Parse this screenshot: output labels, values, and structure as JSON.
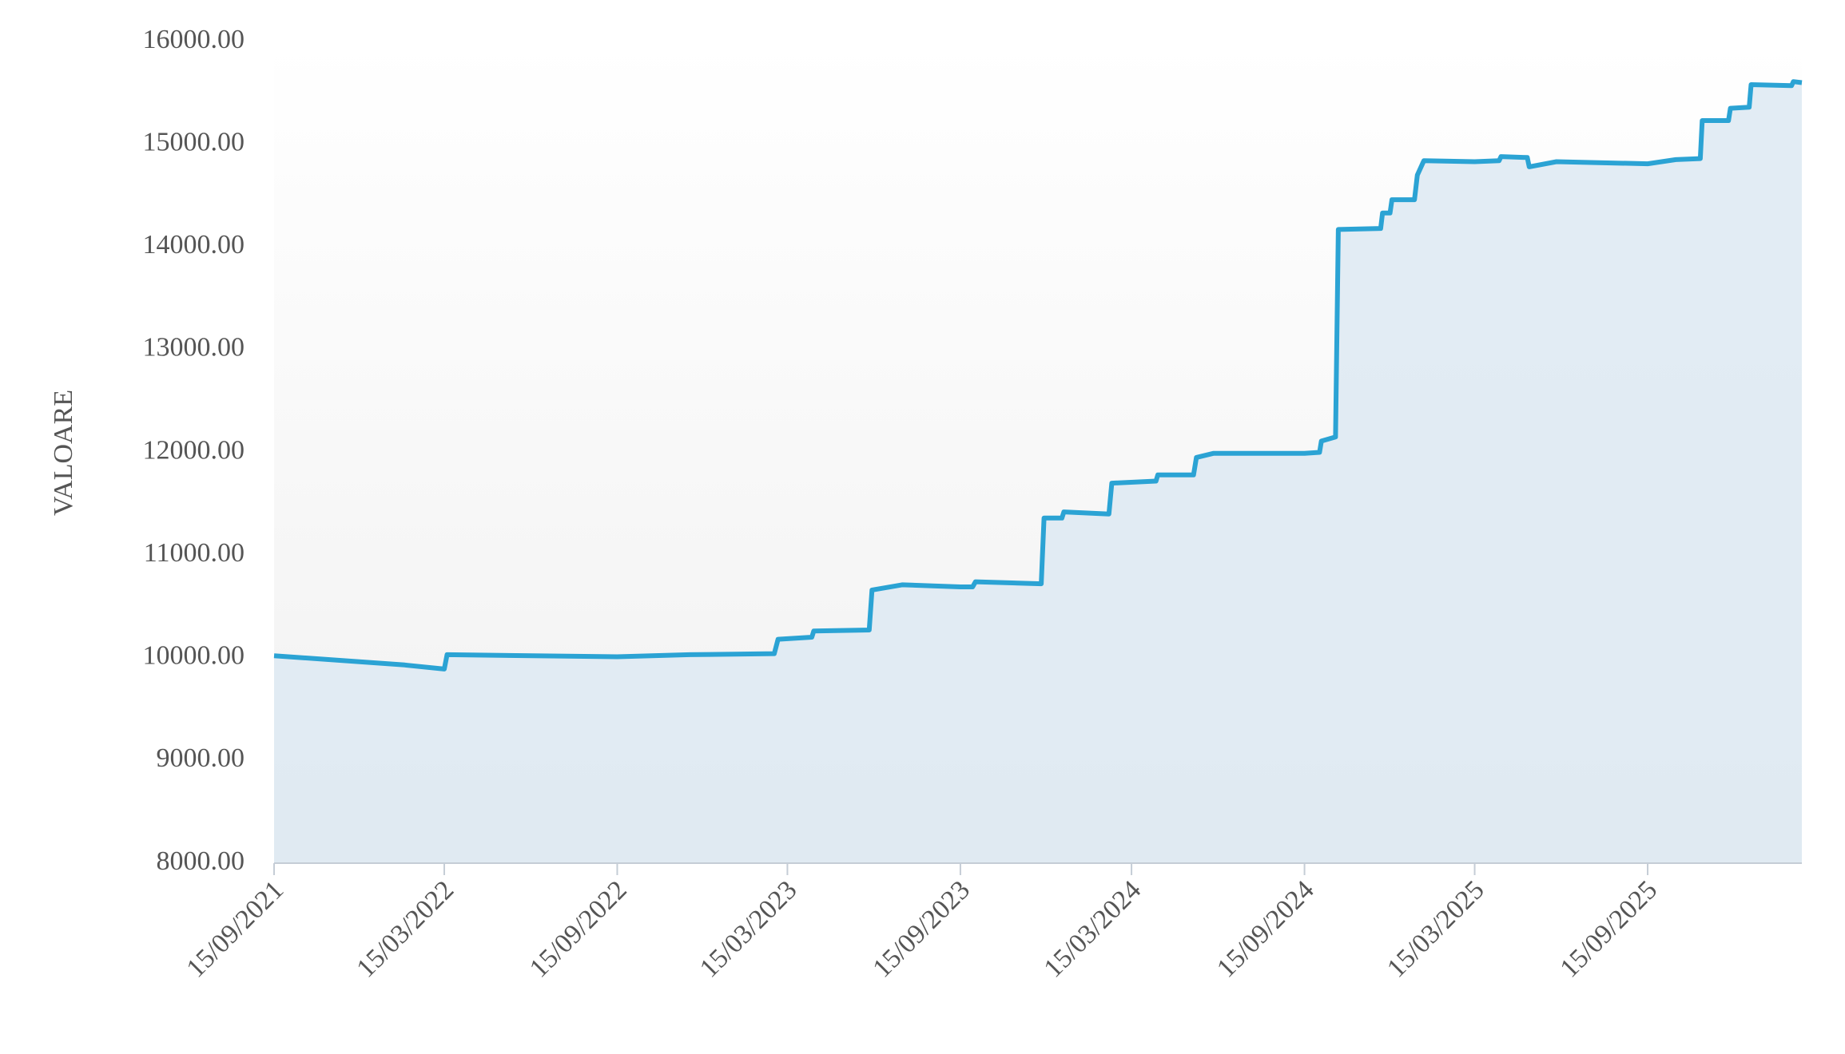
{
  "chart_data": {
    "type": "line",
    "y_label": "VALOARE",
    "color": "#2ba3d4",
    "area_color": "#dde9f2",
    "x": [
      "2021-09-15",
      "2022-02-01",
      "2022-03-15",
      "2022-03-18",
      "2022-09-15",
      "2022-12-01",
      "2023-03-01",
      "2023-03-05",
      "2023-04-10",
      "2023-04-12",
      "2023-06-10",
      "2023-06-13",
      "2023-07-15",
      "2023-09-15",
      "2023-09-28",
      "2023-10-01",
      "2023-12-10",
      "2023-12-13",
      "2024-01-01",
      "2024-01-03",
      "2024-02-20",
      "2024-02-23",
      "2024-04-10",
      "2024-04-12",
      "2024-05-20",
      "2024-05-23",
      "2024-06-10",
      "2024-09-15",
      "2024-10-01",
      "2024-10-03",
      "2024-10-18",
      "2024-10-21",
      "2024-12-05",
      "2024-12-07",
      "2024-12-15",
      "2024-12-17",
      "2025-01-10",
      "2025-01-13",
      "2025-01-20",
      "2025-03-15",
      "2025-04-10",
      "2025-04-12",
      "2025-05-10",
      "2025-05-12",
      "2025-06-10",
      "2025-09-15",
      "2025-10-15",
      "2025-11-10",
      "2025-11-12",
      "2025-12-10",
      "2025-12-12",
      "2026-01-01",
      "2026-01-03",
      "2026-02-15",
      "2026-02-17",
      "2026-02-26"
    ],
    "values": [
      10020,
      9930,
      9890,
      10030,
      10010,
      10030,
      10040,
      10180,
      10200,
      10260,
      10270,
      10660,
      10710,
      10690,
      10690,
      10740,
      10720,
      11360,
      11360,
      11420,
      11400,
      11700,
      11720,
      11780,
      11780,
      11950,
      11990,
      11990,
      12000,
      12110,
      12150,
      14170,
      14180,
      14330,
      14330,
      14460,
      14460,
      14700,
      14840,
      14830,
      14840,
      14880,
      14870,
      14780,
      14830,
      14810,
      14850,
      14860,
      15230,
      15230,
      15350,
      15360,
      15580,
      15570,
      15610,
      15600
    ],
    "xlim": [
      "2021-09-15",
      "2026-02-26"
    ],
    "xticks": [
      {
        "value": "2021-09-15",
        "label": "15/09/2021"
      },
      {
        "value": "2022-03-15",
        "label": "15/03/2022"
      },
      {
        "value": "2022-09-15",
        "label": "15/09/2022"
      },
      {
        "value": "2023-03-15",
        "label": "15/03/2023"
      },
      {
        "value": "2023-09-15",
        "label": "15/09/2023"
      },
      {
        "value": "2024-03-15",
        "label": "15/03/2024"
      },
      {
        "value": "2024-09-15",
        "label": "15/09/2024"
      },
      {
        "value": "2025-03-15",
        "label": "15/03/2025"
      },
      {
        "value": "2025-09-15",
        "label": "15/09/2025"
      }
    ],
    "ylim": [
      8000,
      16000
    ],
    "yticks": [
      {
        "value": 8000,
        "label": "8000.00"
      },
      {
        "value": 9000,
        "label": "9000.00"
      },
      {
        "value": 10000,
        "label": "10000.00"
      },
      {
        "value": 11000,
        "label": "11000.00"
      },
      {
        "value": 12000,
        "label": "12000.00"
      },
      {
        "value": 13000,
        "label": "13000.00"
      },
      {
        "value": 14000,
        "label": "14000.00"
      },
      {
        "value": 15000,
        "label": "15000.00"
      },
      {
        "value": 16000,
        "label": "16000.00"
      }
    ]
  }
}
